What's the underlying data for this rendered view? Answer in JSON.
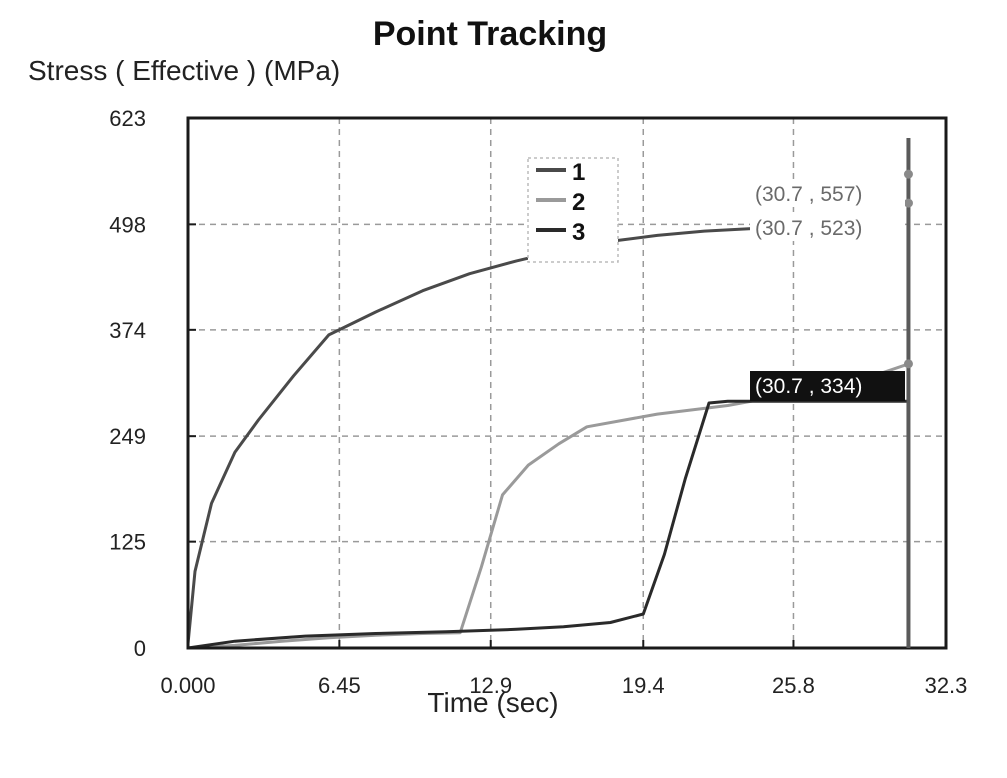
{
  "chart_data": {
    "type": "line",
    "title": "Point Tracking",
    "xlabel": "Time (sec)",
    "ylabel": "Stress ( Effective )  (MPa)",
    "xlim": [
      0,
      32.3
    ],
    "ylim": [
      0,
      623
    ],
    "x_ticks": [
      "0.000",
      "6.45",
      "12.9",
      "19.4",
      "25.8",
      "32.3"
    ],
    "x_tick_values": [
      0,
      6.45,
      12.9,
      19.4,
      25.8,
      32.3
    ],
    "y_ticks": [
      "0",
      "125",
      "249",
      "374",
      "498",
      "623"
    ],
    "y_tick_values": [
      0,
      125,
      249,
      374,
      498,
      623
    ],
    "grid": true,
    "legend_position": "top-center",
    "series": [
      {
        "name": "1",
        "color": "#4a4a4a",
        "x": [
          0,
          0.3,
          1.0,
          2.0,
          3.0,
          4.5,
          6.0,
          8.0,
          10.0,
          12.0,
          14.0,
          16.0,
          18.0,
          20.0,
          22.0,
          24.0
        ],
        "y": [
          5,
          90,
          170,
          230,
          268,
          320,
          368,
          395,
          420,
          440,
          455,
          468,
          478,
          485,
          490,
          493
        ]
      },
      {
        "name": "2",
        "color": "#9a9a9a",
        "x": [
          0,
          2.0,
          4.0,
          6.0,
          8.0,
          10.0,
          11.6,
          12.5,
          13.4,
          14.5,
          15.8,
          17.0,
          20.0,
          23.0,
          26.0,
          29.0,
          30.7
        ],
        "y": [
          0,
          3,
          8,
          12,
          15,
          17,
          18,
          95,
          180,
          215,
          240,
          260,
          275,
          285,
          300,
          318,
          334
        ]
      },
      {
        "name": "3",
        "color": "#2a2a2a",
        "x": [
          0,
          2.0,
          5.0,
          8.0,
          11.0,
          14.0,
          16.0,
          18.0,
          19.4,
          20.3,
          21.2,
          22.2,
          23.0,
          30.7
        ],
        "y": [
          0,
          8,
          14,
          17,
          19,
          22,
          25,
          30,
          40,
          110,
          200,
          288,
          290,
          290
        ]
      }
    ],
    "cursor_x": 30.7,
    "annotations": [
      {
        "text": "(30.7 , 557)",
        "x": 30.7,
        "y": 557,
        "style": "plain"
      },
      {
        "text": "(30.7 , 523)",
        "x": 30.7,
        "y": 523,
        "style": "plain"
      },
      {
        "text": "(30.7 , 334)",
        "x": 30.7,
        "y": 334,
        "style": "highlight"
      }
    ]
  }
}
